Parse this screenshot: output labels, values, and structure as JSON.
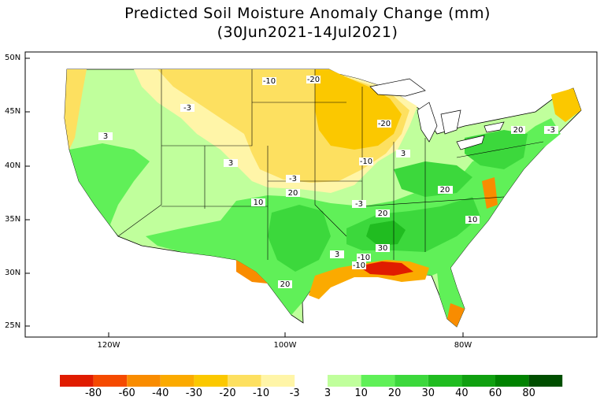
{
  "title": {
    "line1": "Predicted Soil Moisture Anomaly Change (mm)",
    "line2": "(30Jun2021-14Jul2021)"
  },
  "axes": {
    "lat_labels": [
      "50N",
      "45N",
      "40N",
      "35N",
      "30N",
      "25N"
    ],
    "lon_labels": [
      "120W",
      "100W",
      "80W"
    ]
  },
  "contour_labels": [
    "-3",
    "-10",
    "-20",
    "-20",
    "-10",
    "-3",
    "3",
    "3",
    "3",
    "10",
    "20",
    "20",
    "10",
    "20",
    "-3",
    "3",
    "-10",
    "30",
    "20",
    "-10",
    "10",
    "20",
    "20",
    "-3"
  ],
  "colorbar": {
    "labels": [
      "-80",
      "-60",
      "-40",
      "-30",
      "-20",
      "-10",
      "-3",
      "3",
      "10",
      "20",
      "30",
      "40",
      "60",
      "80"
    ],
    "colors": [
      "#e01c00",
      "#f54a00",
      "#f98c00",
      "#fbaa00",
      "#fbc800",
      "#fde060",
      "#fff5a8",
      "#c0ff9c",
      "#60f058",
      "#3cd83c",
      "#20bc20",
      "#10a010",
      "#008200",
      "#004e00"
    ]
  },
  "map_colors": {
    "dry_light": "#fff5a8",
    "dry_mid": "#fde060",
    "dry_strong": "#fbc800",
    "dry_vstrong": "#fbaa00",
    "wet_light": "#c0ff9c",
    "wet_mid": "#60f058",
    "wet_strong": "#3cd83c",
    "wet_vstrong": "#20bc20"
  }
}
